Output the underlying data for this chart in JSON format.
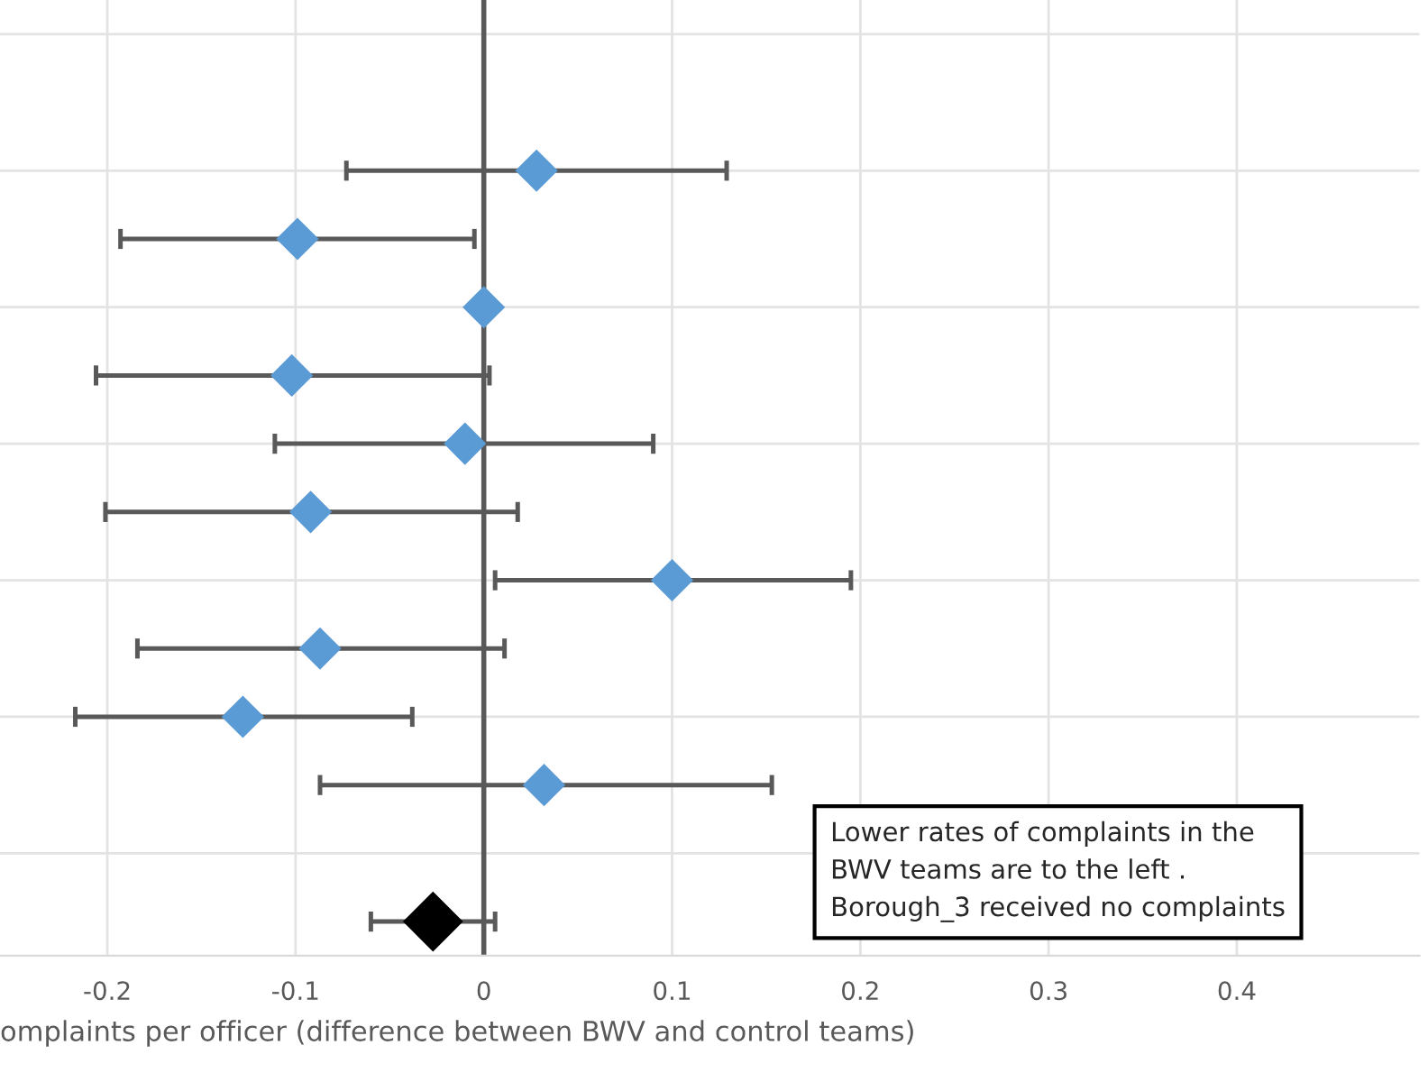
{
  "chart_data": {
    "type": "scatter",
    "orientation": "horizontal",
    "categories": [
      null,
      null,
      null,
      null,
      null,
      null,
      null,
      null,
      null,
      null,
      null,
      null,
      null,
      null
    ],
    "series": [
      {
        "color": "#5b9bd5",
        "values": [
          null,
          null,
          0.028,
          -0.099,
          0.0,
          -0.102,
          -0.01,
          -0.092,
          0.1,
          -0.087,
          -0.128,
          0.032,
          null,
          null
        ],
        "errors": [
          null,
          null,
          [
            -0.073,
            0.129
          ],
          [
            -0.193,
            -0.005
          ],
          null,
          [
            -0.206,
            0.003
          ],
          [
            -0.111,
            0.09
          ],
          [
            -0.201,
            0.018
          ],
          [
            0.006,
            0.195
          ],
          [
            -0.184,
            0.011
          ],
          [
            -0.217,
            -0.038
          ],
          [
            -0.087,
            0.153
          ],
          null,
          null
        ]
      },
      {
        "color": "#000000",
        "values": [
          null,
          null,
          null,
          null,
          null,
          null,
          null,
          null,
          null,
          null,
          null,
          null,
          null,
          -0.027
        ],
        "errors": [
          null,
          null,
          null,
          null,
          null,
          null,
          null,
          null,
          null,
          null,
          null,
          null,
          null,
          [
            -0.06,
            0.006
          ]
        ]
      }
    ],
    "marker": "diamond",
    "xlim": [
      -0.257,
      0.497
    ],
    "xticks": [
      -0.2,
      -0.1,
      0,
      0.1,
      0.2,
      0.3,
      0.4
    ],
    "xlabel": "omplaints per officer (difference between BWV and control teams)",
    "ref_lines": [
      {
        "axis": "x",
        "value": 0,
        "color": "#595959"
      }
    ],
    "annotations": [
      "Lower rates of complaints in the\nBWV teams are to the left .\nBorough_3 received no complaints"
    ],
    "grid": true,
    "tick_labels": "x"
  }
}
